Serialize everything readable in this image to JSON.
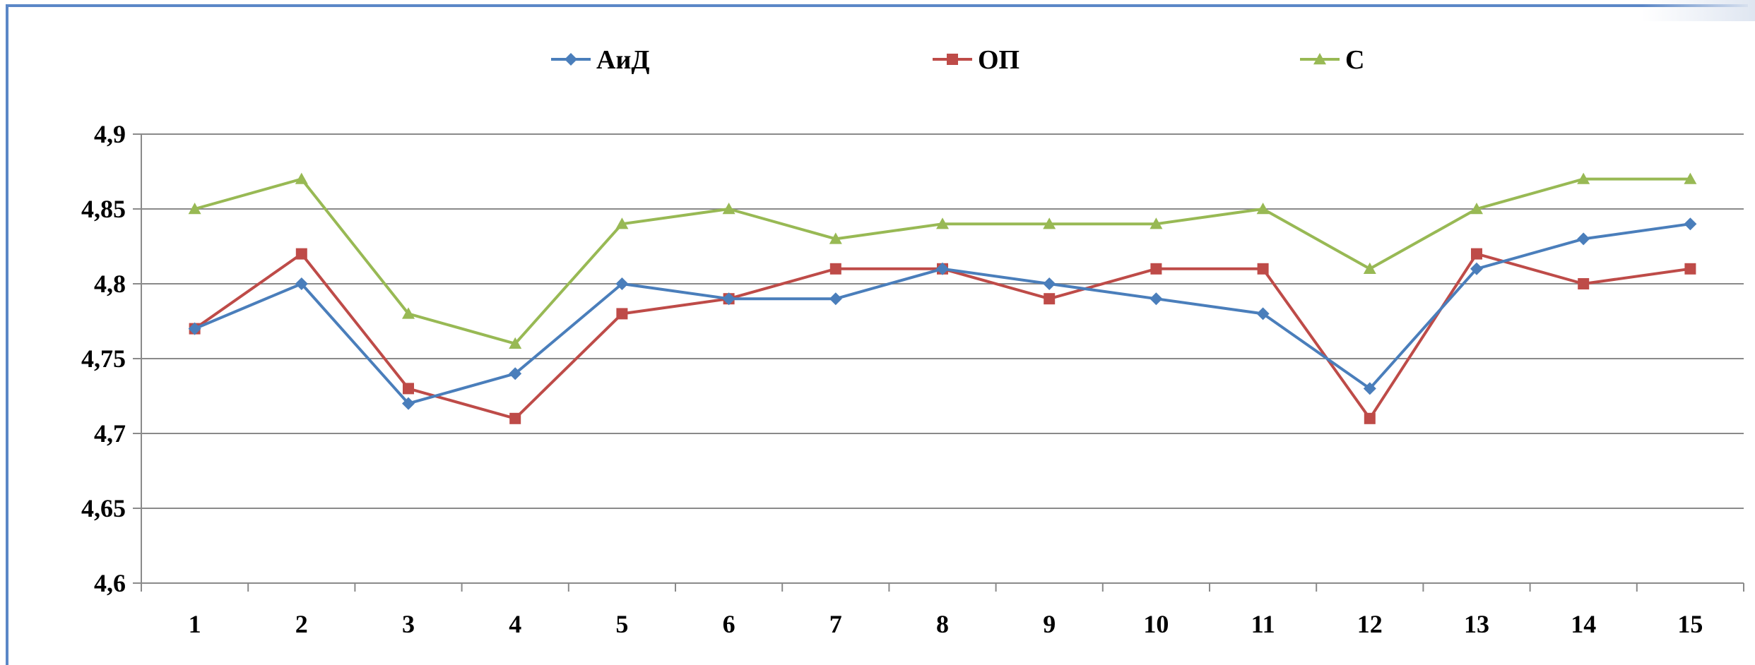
{
  "chart_data": {
    "type": "line",
    "title": "",
    "xlabel": "",
    "ylabel": "",
    "categories": [
      "1",
      "2",
      "3",
      "4",
      "5",
      "6",
      "7",
      "8",
      "9",
      "10",
      "11",
      "12",
      "13",
      "14",
      "15"
    ],
    "ylim": [
      4.6,
      4.9
    ],
    "yticks": [
      "4,6",
      "4,65",
      "4,7",
      "4,75",
      "4,8",
      "4,85",
      "4,9"
    ],
    "grid": true,
    "legend_position": "top",
    "series": [
      {
        "name": "АиД",
        "color": "#4a7ebb",
        "marker": "diamond",
        "values": [
          4.77,
          4.8,
          4.72,
          4.74,
          4.8,
          4.79,
          4.79,
          4.81,
          4.8,
          4.79,
          4.78,
          4.73,
          4.81,
          4.83,
          4.84
        ]
      },
      {
        "name": "ОП",
        "color": "#be4b48",
        "marker": "square",
        "values": [
          4.77,
          4.82,
          4.73,
          4.71,
          4.78,
          4.79,
          4.81,
          4.81,
          4.79,
          4.81,
          4.81,
          4.71,
          4.82,
          4.8,
          4.81
        ]
      },
      {
        "name": "С",
        "color": "#98b954",
        "marker": "triangle",
        "values": [
          4.85,
          4.87,
          4.78,
          4.76,
          4.84,
          4.85,
          4.83,
          4.84,
          4.84,
          4.84,
          4.85,
          4.81,
          4.85,
          4.87,
          4.87
        ]
      }
    ]
  }
}
